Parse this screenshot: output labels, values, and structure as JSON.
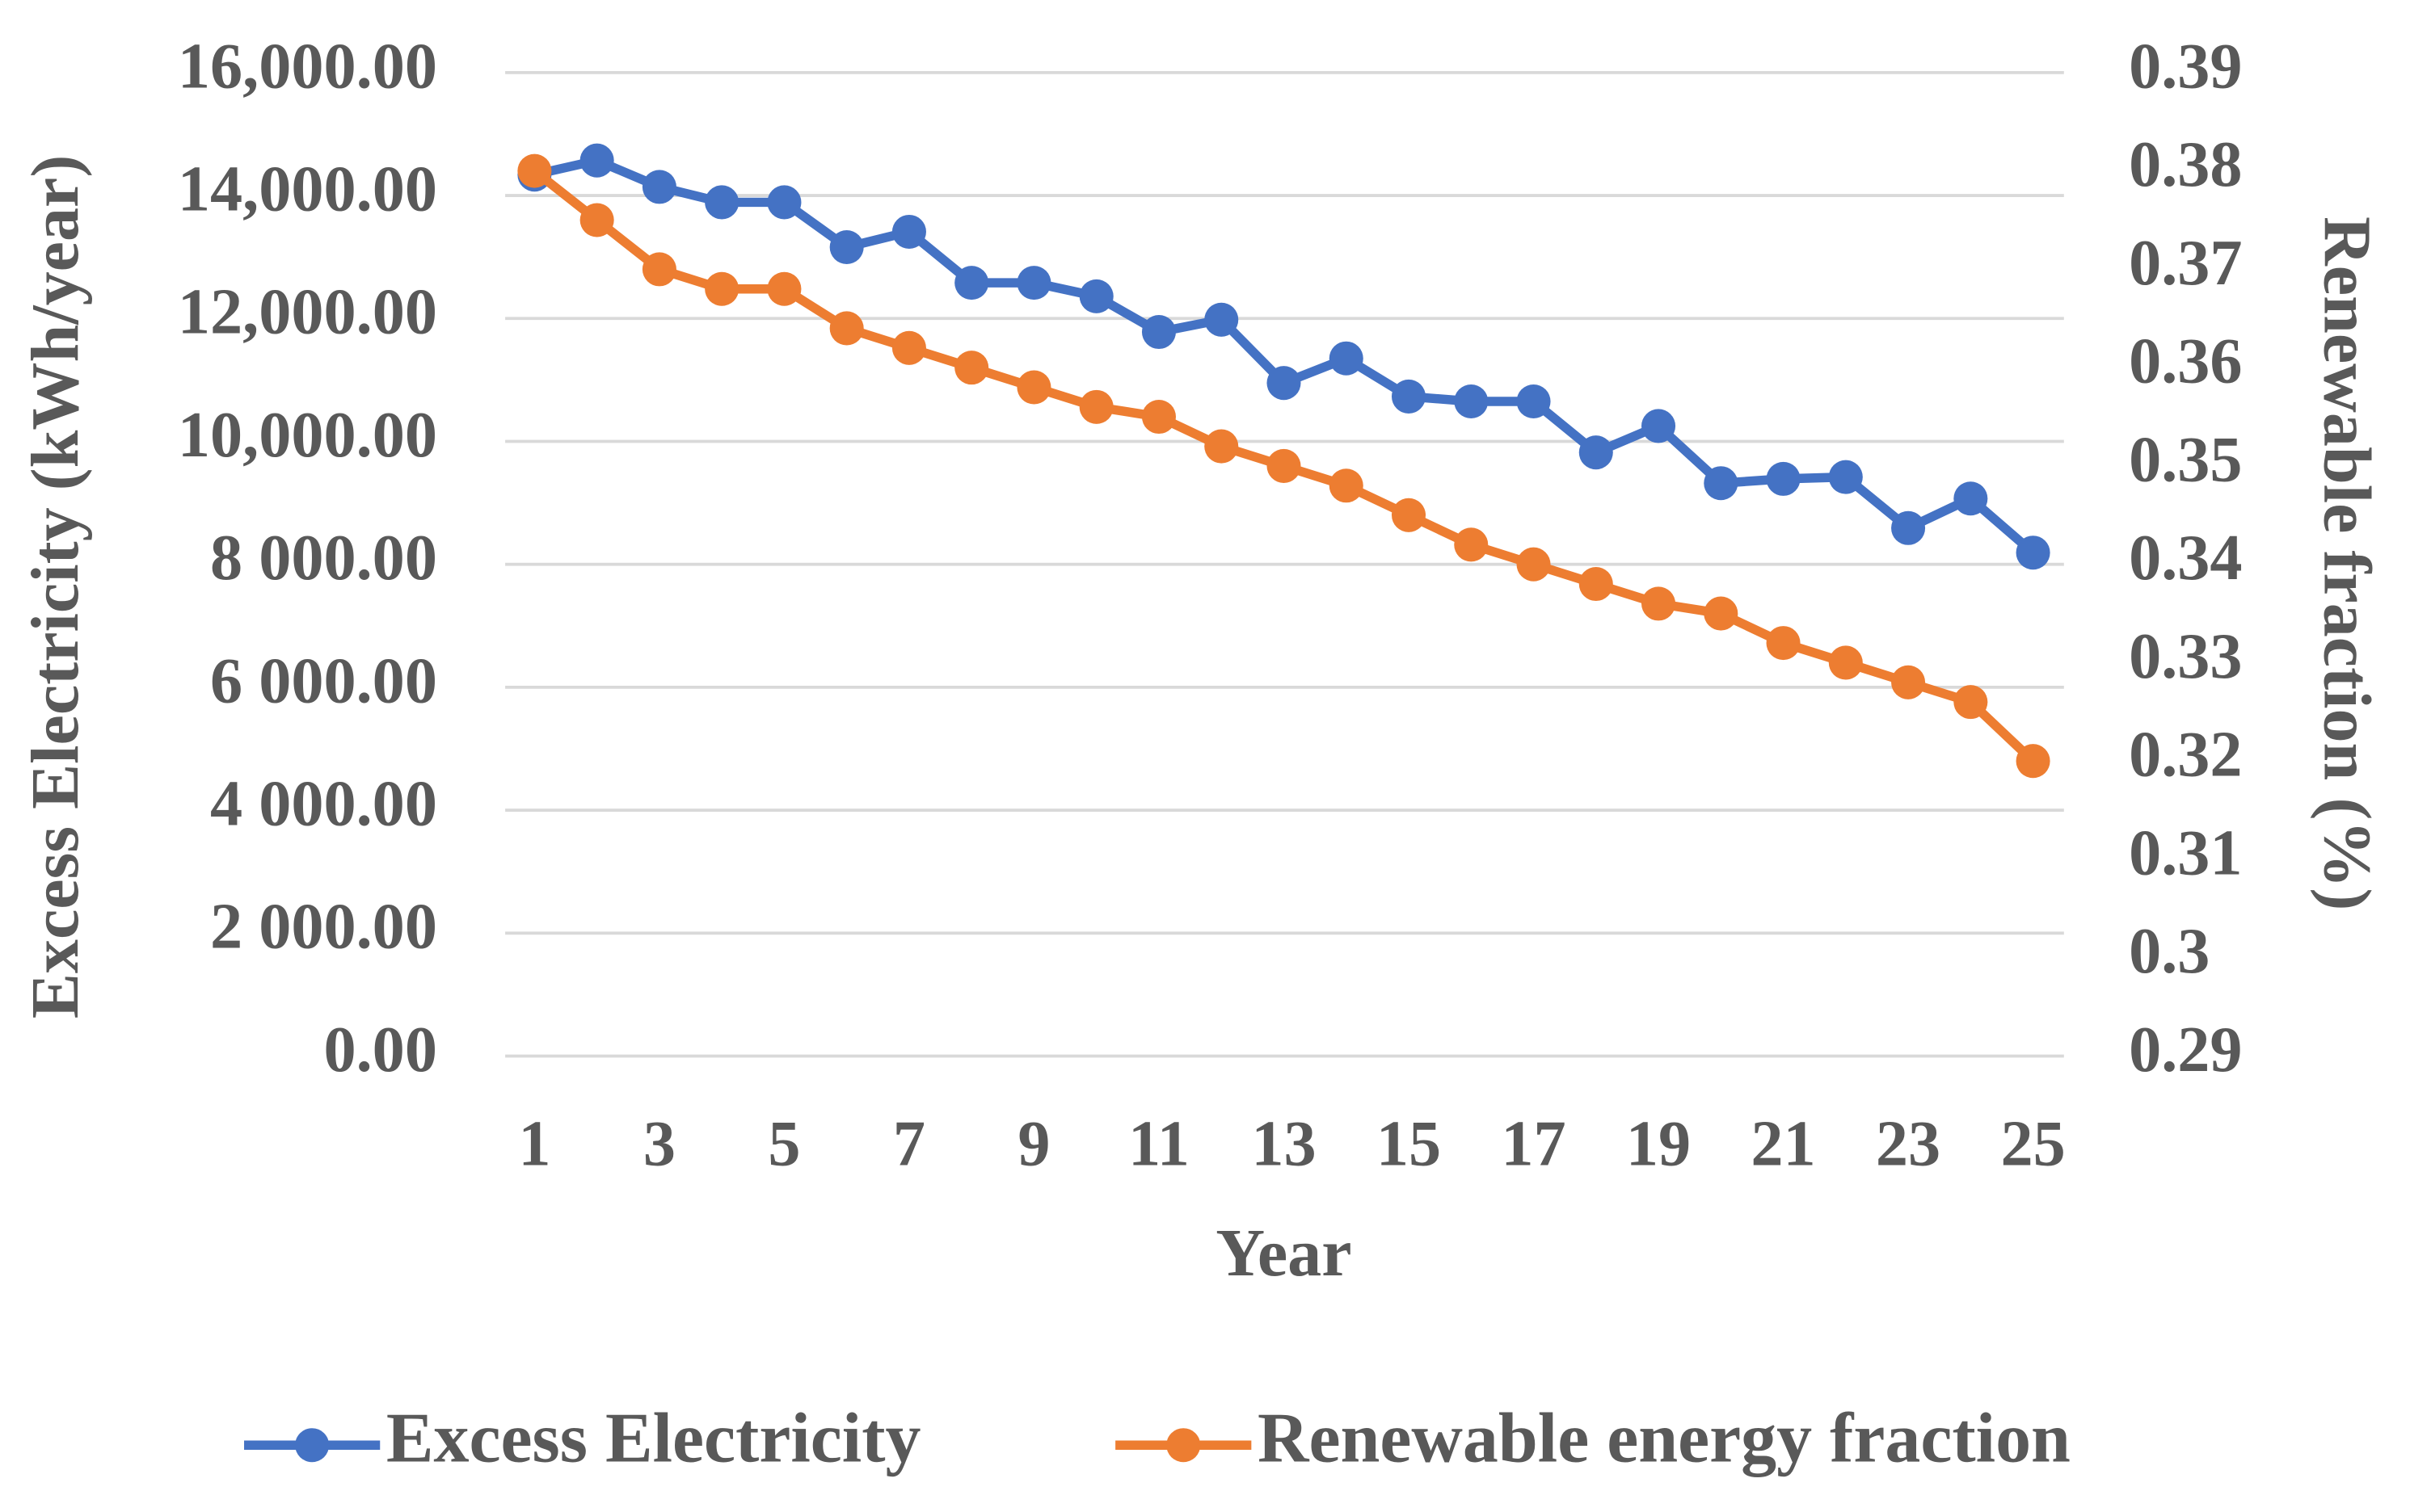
{
  "chart_data": {
    "type": "line",
    "x_label": "Year",
    "y_label": "Excess Electricity (kWh/year)",
    "y2_label": "Renewable fraction (%)",
    "x": [
      1,
      2,
      3,
      4,
      5,
      6,
      7,
      8,
      9,
      10,
      11,
      12,
      13,
      14,
      15,
      16,
      17,
      18,
      19,
      20,
      21,
      22,
      23,
      24,
      25
    ],
    "xlim": [
      1,
      25
    ],
    "xticks": [
      1,
      3,
      5,
      7,
      9,
      11,
      13,
      15,
      17,
      19,
      21,
      23,
      25
    ],
    "ylim": [
      0,
      16000
    ],
    "yticks": [
      {
        "value": 0,
        "label": "0.00"
      },
      {
        "value": 2000,
        "label": "2 000.00"
      },
      {
        "value": 4000,
        "label": "4 000.00"
      },
      {
        "value": 6000,
        "label": "6 000.00"
      },
      {
        "value": 8000,
        "label": "8 000.00"
      },
      {
        "value": 10000,
        "label": "10,000.00"
      },
      {
        "value": 12000,
        "label": "12,000.00"
      },
      {
        "value": 14000,
        "label": "14,000.00"
      },
      {
        "value": 16000,
        "label": "16,000.00"
      }
    ],
    "y2lim": [
      0.29,
      0.39
    ],
    "y2ticks": [
      0.29,
      0.3,
      0.31,
      0.32,
      0.33,
      0.34,
      0.35,
      0.36,
      0.37,
      0.38,
      0.39
    ],
    "grid": true,
    "legend": "bottom",
    "series": [
      {
        "name": "Excess Electricity",
        "color": "#4472c4",
        "values": [
          14340,
          14570,
          14140,
          13890,
          13890,
          13160,
          13410,
          12580,
          12580,
          12360,
          11780,
          11980,
          10950,
          11350,
          10730,
          10650,
          10650,
          9820,
          10250,
          9320,
          9390,
          9420,
          8590,
          9070,
          8190
        ]
      },
      {
        "name": "Renewable energy fraction",
        "color": "#ed7d31",
        "axis": "y2",
        "values": [
          0.38,
          0.375,
          0.37,
          0.368,
          0.368,
          0.364,
          0.362,
          0.36,
          0.358,
          0.356,
          0.355,
          0.352,
          0.35,
          0.348,
          0.345,
          0.342,
          0.34,
          0.338,
          0.336,
          0.335,
          0.332,
          0.33,
          0.328,
          0.326,
          0.32
        ]
      }
    ]
  }
}
